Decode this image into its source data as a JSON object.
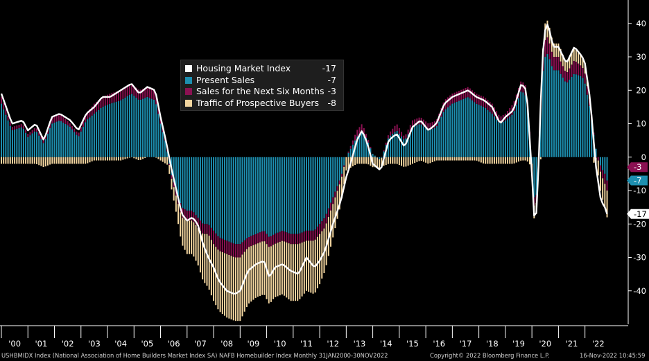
{
  "chart_data": {
    "type": "bar",
    "title": "",
    "xlabel": "",
    "ylabel": "",
    "ylim": [
      -50,
      47
    ],
    "yticks": [
      -40,
      -30,
      -20,
      -10,
      0,
      10,
      20,
      30,
      40
    ],
    "grid": false,
    "legend_placement": "top-left",
    "stacked": true,
    "x_tick_labels": [
      "'00",
      "'01",
      "'02",
      "'03",
      "'04",
      "'05",
      "'06",
      "'07",
      "'08",
      "'09",
      "'10",
      "'11",
      "'12",
      "'13",
      "'14",
      "'15",
      "'16",
      "'17",
      "'18",
      "'19",
      "'20",
      "'21",
      "'22"
    ],
    "keyframes": {
      "x": [
        2000.0,
        2000.4,
        2000.8,
        2001.0,
        2001.3,
        2001.6,
        2001.9,
        2002.2,
        2002.6,
        2002.9,
        2003.2,
        2003.5,
        2003.8,
        2004.1,
        2004.5,
        2004.9,
        2005.2,
        2005.5,
        2005.8,
        2006.0,
        2006.2,
        2006.4,
        2006.6,
        2006.8,
        2007.0,
        2007.2,
        2007.4,
        2007.6,
        2007.8,
        2008.0,
        2008.2,
        2008.5,
        2008.8,
        2009.0,
        2009.3,
        2009.6,
        2009.9,
        2010.1,
        2010.3,
        2010.6,
        2010.9,
        2011.2,
        2011.5,
        2011.8,
        2012.0,
        2012.2,
        2012.5,
        2012.8,
        2013.0,
        2013.2,
        2013.4,
        2013.6,
        2013.8,
        2014.0,
        2014.3,
        2014.6,
        2014.9,
        2015.2,
        2015.5,
        2015.8,
        2016.1,
        2016.4,
        2016.7,
        2017.0,
        2017.3,
        2017.6,
        2017.9,
        2018.2,
        2018.5,
        2018.8,
        2019.0,
        2019.3,
        2019.6,
        2019.8,
        2020.0,
        2020.1,
        2020.2,
        2020.3,
        2020.4,
        2020.5,
        2020.6,
        2020.8,
        2021.0,
        2021.3,
        2021.6,
        2021.9,
        2022.0,
        2022.2,
        2022.4,
        2022.6,
        2022.75,
        2022.83
      ],
      "hmi": [
        19,
        10,
        11,
        8,
        10,
        5,
        12,
        13,
        11,
        8,
        13,
        15,
        18,
        18,
        20,
        22,
        19,
        21,
        20,
        12,
        5,
        -3,
        -10,
        -17,
        -19,
        -18,
        -20,
        -26,
        -30,
        -33,
        -37,
        -40,
        -41,
        -40,
        -34,
        -32,
        -31,
        -36,
        -33,
        -32,
        -34,
        -35,
        -30,
        -33,
        -31,
        -28,
        -20,
        -13,
        -6,
        -1,
        5,
        8,
        4,
        -2,
        -4,
        5,
        7,
        3,
        9,
        11,
        8,
        10,
        16,
        18,
        19,
        20,
        18,
        17,
        15,
        10,
        12,
        14,
        22,
        20,
        -5,
        -20,
        -15,
        10,
        30,
        38,
        40,
        33,
        33,
        28,
        33,
        30,
        28,
        17,
        -2,
        -13,
        -15,
        -17
      ],
      "ps": [
        16,
        8,
        9,
        6,
        8,
        4,
        10,
        11,
        9,
        6,
        11,
        13,
        15,
        16,
        17,
        19,
        17,
        18,
        17,
        10,
        4,
        -5,
        -10,
        -15,
        -16,
        -16,
        -18,
        -20,
        -20,
        -22,
        -24,
        -25,
        -26,
        -26,
        -24,
        -23,
        -22,
        -24,
        -23,
        -22,
        -23,
        -23,
        -22,
        -22,
        -20,
        -18,
        -12,
        -6,
        0,
        3,
        6,
        8,
        5,
        1,
        -1,
        6,
        8,
        5,
        9,
        10,
        8,
        9,
        14,
        16,
        17,
        18,
        16,
        15,
        13,
        10,
        11,
        13,
        20,
        18,
        -2,
        -14,
        -10,
        10,
        25,
        30,
        31,
        26,
        26,
        22,
        25,
        24,
        22,
        14,
        3,
        -3,
        -5,
        -7
      ],
      "sn": [
        2,
        1,
        1,
        1,
        1,
        1,
        2,
        2,
        1,
        1,
        2,
        3,
        3,
        3,
        3,
        3,
        3,
        3,
        3,
        2,
        1,
        -1,
        -2,
        -3,
        -3,
        -3,
        -3,
        -3,
        -3,
        -4,
        -4,
        -4,
        -4,
        -4,
        -3,
        -3,
        -3,
        -3,
        -3,
        -3,
        -3,
        -3,
        -3,
        -3,
        -3,
        -3,
        -2,
        -1,
        0,
        1,
        2,
        2,
        1,
        0,
        0,
        1,
        2,
        1,
        2,
        2,
        2,
        2,
        3,
        3,
        3,
        3,
        3,
        3,
        3,
        2,
        2,
        3,
        3,
        3,
        0,
        -3,
        -2,
        2,
        4,
        5,
        5,
        4,
        4,
        3,
        4,
        3,
        3,
        2,
        0,
        -2,
        -3,
        -3
      ],
      "tr": [
        -2,
        -2,
        -2,
        -2,
        -2,
        -3,
        -2,
        -2,
        -2,
        -2,
        -2,
        -1,
        -1,
        -1,
        -1,
        0,
        -1,
        0,
        0,
        -1,
        -2,
        -3,
        -5,
        -8,
        -10,
        -10,
        -11,
        -14,
        -16,
        -17,
        -18,
        -19,
        -19,
        -19,
        -17,
        -16,
        -16,
        -17,
        -16,
        -16,
        -17,
        -17,
        -15,
        -16,
        -15,
        -13,
        -10,
        -7,
        -4,
        -3,
        -2,
        -2,
        -2,
        -3,
        -3,
        -2,
        -2,
        -3,
        -2,
        -1,
        -2,
        -1,
        -1,
        -1,
        -1,
        -1,
        -1,
        -2,
        -2,
        -2,
        -2,
        -2,
        -1,
        -1,
        -3,
        -4,
        -3,
        -2,
        2,
        5,
        5,
        4,
        4,
        3,
        4,
        3,
        3,
        1,
        -3,
        -6,
        -7,
        -8
      ]
    },
    "series": [
      {
        "name": "Housing Market Index",
        "color": "#ffffff",
        "last": "-17"
      },
      {
        "name": "Present Sales",
        "color": "#1d8fb0",
        "last": "-7"
      },
      {
        "name": "Sales for the Next Six Months",
        "color": "#8b1152",
        "last": "-3"
      },
      {
        "name": "Traffic of Prospective Buyers",
        "color": "#f3d6a0",
        "last": "-8"
      }
    ],
    "end_labels": [
      {
        "text": "-7",
        "value": -7,
        "bg": "#1d8fb0",
        "fg": "#ffffff"
      },
      {
        "text": "-3",
        "value": -3,
        "bg": "#8b1152",
        "fg": "#ffffff"
      },
      {
        "text": "-17",
        "value": -17,
        "bg": "#ffffff",
        "fg": "#000000"
      }
    ]
  },
  "footer": {
    "source": "USHBMIDX Index (National Association of Home Builders Market Index SA) NAFB Homebuilder Index  Monthly 31JAN2000-30NOV2022",
    "copyright": "Copyright© 2022 Bloomberg Finance L.P.",
    "timestamp": "16-Nov-2022 10:45:59"
  }
}
